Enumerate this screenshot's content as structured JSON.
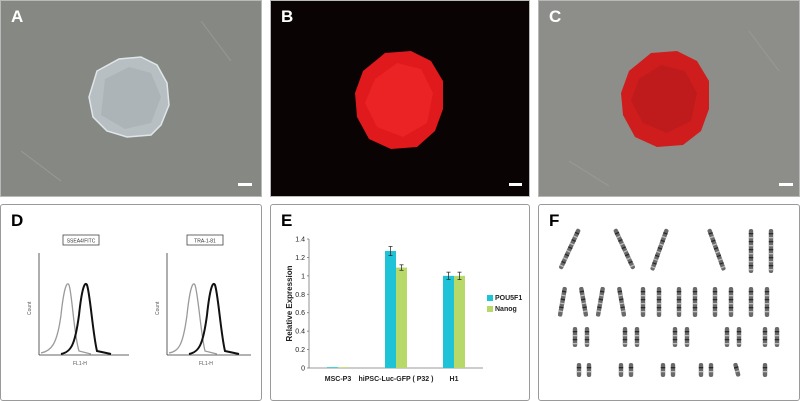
{
  "panels": {
    "a": {
      "letter": "A"
    },
    "b": {
      "letter": "B"
    },
    "c": {
      "letter": "C"
    },
    "d": {
      "letter": "D",
      "left": {
        "label": "SSEA4/FITC",
        "ylabel": "Count",
        "xlabel": "FL1-H"
      },
      "right": {
        "label": "TRA-1-81",
        "ylabel": "Count",
        "xlabel": "FL1-H"
      }
    },
    "e": {
      "letter": "E"
    },
    "f": {
      "letter": "F"
    }
  },
  "chart_data": {
    "type": "bar",
    "categories": [
      "MSC-P3",
      "hiPSC-Luc-GFP ( P32 )",
      "H1"
    ],
    "series": [
      {
        "name": "POU5F1",
        "values": [
          0.0,
          1.27,
          1.0
        ],
        "errors": [
          0.0,
          0.05,
          0.04
        ],
        "color": "#1ec3d8"
      },
      {
        "name": "Nanog",
        "values": [
          0.0,
          1.09,
          1.0
        ],
        "errors": [
          0.0,
          0.03,
          0.04
        ],
        "color": "#b6d96a"
      }
    ],
    "ylabel": "Relative Expression",
    "ylim": [
      0,
      1.4
    ],
    "yticks": [
      "0",
      "0.2",
      "0.4",
      "0.6",
      "0.8",
      "1",
      "1.2",
      "1.4"
    ],
    "legend": "right"
  }
}
